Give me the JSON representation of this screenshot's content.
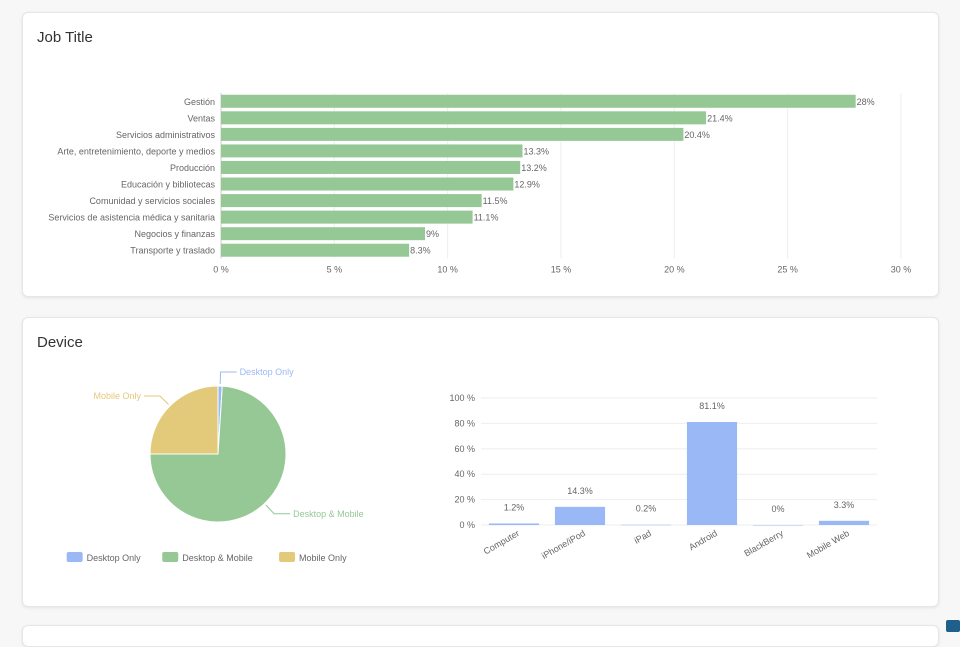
{
  "cards": {
    "job_title": "Job Title",
    "device": "Device"
  },
  "colors": {
    "green": "#95c895",
    "blue": "#9bb8f6",
    "yellow": "#e3c97a",
    "axis_text": "#666666",
    "grid": "#eeeeee"
  },
  "chart_data": [
    {
      "type": "bar",
      "orientation": "horizontal",
      "categories": [
        "Gestión",
        "Ventas",
        "Servicios administrativos",
        "Arte, entretenimiento, deporte y medios",
        "Producción",
        "Educación y bibliotecas",
        "Comunidad y servicios sociales",
        "Servicios de asistencia médica y sanitaria",
        "Negocios y finanzas",
        "Transporte y traslado"
      ],
      "values": [
        28,
        21.4,
        20.4,
        13.3,
        13.2,
        12.9,
        11.5,
        11.1,
        9,
        8.3
      ],
      "data_labels": [
        "28%",
        "21.4%",
        "20.4%",
        "13.3%",
        "13.2%",
        "12.9%",
        "11.5%",
        "11.1%",
        "9%",
        "8.3%"
      ],
      "xlim": [
        0,
        30
      ],
      "xticks": [
        0,
        5,
        10,
        15,
        20,
        25,
        30
      ],
      "xtick_labels": [
        "0 %",
        "5 %",
        "10 %",
        "15 %",
        "20 %",
        "25 %",
        "30 %"
      ],
      "grid": true,
      "color": "#95c895"
    },
    {
      "type": "pie",
      "labels": [
        "Desktop Only",
        "Desktop & Mobile",
        "Mobile Only"
      ],
      "values": [
        1,
        74,
        25
      ],
      "colors": [
        "#9bb8f6",
        "#95c895",
        "#e3c97a"
      ],
      "legend": {
        "position": "bottom",
        "entries": [
          "Desktop Only",
          "Desktop & Mobile",
          "Mobile Only"
        ]
      }
    },
    {
      "type": "bar",
      "categories": [
        "Computer",
        "iPhone/iPod",
        "iPad",
        "Android",
        "BlackBerry",
        "Mobile Web"
      ],
      "values": [
        1.2,
        14.3,
        0.2,
        81.1,
        0,
        3.3
      ],
      "data_labels": [
        "1.2%",
        "14.3%",
        "0.2%",
        "81.1%",
        "0%",
        "3.3%"
      ],
      "ylim": [
        0,
        100
      ],
      "yticks": [
        0,
        20,
        40,
        60,
        80,
        100
      ],
      "ytick_labels": [
        "0 %",
        "20 %",
        "40 %",
        "60 %",
        "80 %",
        "100 %"
      ],
      "grid": true,
      "color": "#9bb8f6"
    }
  ]
}
